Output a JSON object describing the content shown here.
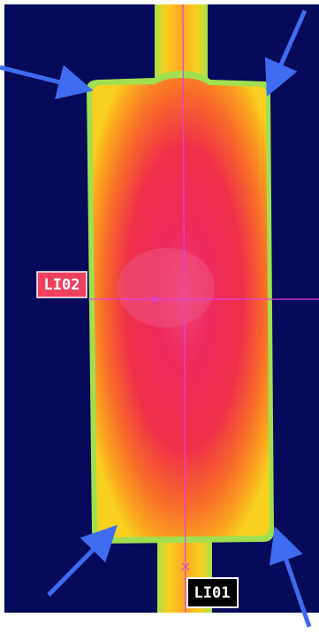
{
  "labels": {
    "horizontal_line": "LI02",
    "vertical_line": "LI01"
  }
}
